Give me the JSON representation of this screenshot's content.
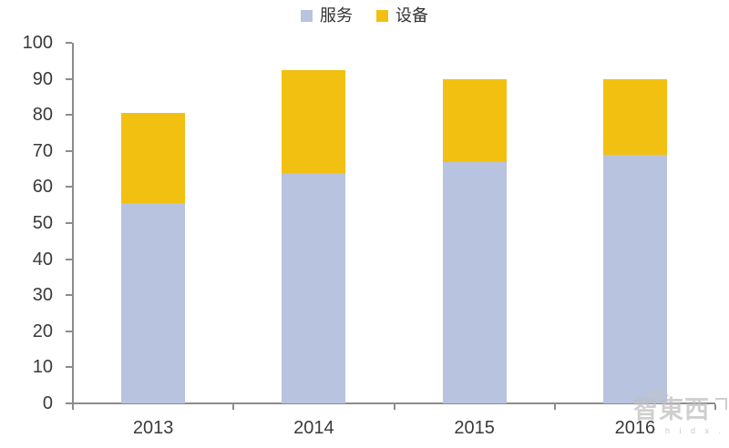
{
  "page": {
    "background": "#ffffff"
  },
  "watermark": {
    "brand": "智東西",
    "url": "z h i d x . c o m"
  },
  "chart_data": {
    "type": "bar",
    "stacked": true,
    "title": "",
    "xlabel": "",
    "ylabel": "",
    "categories": [
      "2013",
      "2014",
      "2015",
      "2016"
    ],
    "series": [
      {
        "name": "服务",
        "key": "services",
        "color": "#B7C3DF",
        "values": [
          55.5,
          64,
          67,
          69
        ]
      },
      {
        "name": "设备",
        "key": "equipment",
        "color": "#F2C011",
        "values": [
          25,
          28.5,
          23,
          21
        ]
      }
    ],
    "totals": [
      80.5,
      92.5,
      90,
      90
    ],
    "ylim": [
      0,
      100
    ],
    "yticks": [
      0,
      10,
      20,
      30,
      40,
      50,
      60,
      70,
      80,
      90,
      100
    ],
    "grid": false,
    "legend_position": "top-center",
    "axis_color": "#8C8C8C",
    "label_color": "#3A3A3A"
  }
}
